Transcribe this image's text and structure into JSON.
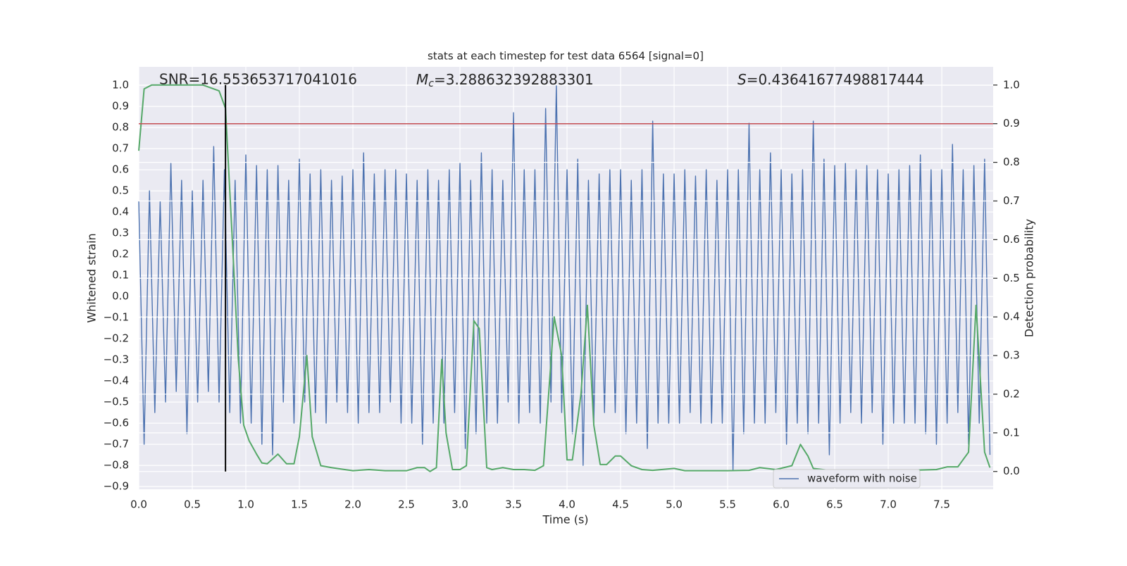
{
  "chart_data": {
    "type": "line",
    "title": "stats at each timestep for test data 6564 [signal=0]",
    "xlabel": "Time (s)",
    "ylabel": "Whitened strain",
    "y2label": "Detection probability",
    "annotations": {
      "snr": "SNR=16.553653717041016",
      "mc": {
        "symbol": "M",
        "subscript": "c",
        "value": "=3.288632392883301"
      },
      "s": {
        "symbol": "S",
        "value": "=0.43641677498817444"
      }
    },
    "xlim": [
      0,
      7.98
    ],
    "ylim": [
      -0.913,
      1.087
    ],
    "y2lim": [
      -0.046,
      1.047
    ],
    "grid": true,
    "legend": "lower right",
    "xticks": [
      {
        "value": 0,
        "label": "0.0"
      },
      {
        "value": 0.5,
        "label": "0.5"
      },
      {
        "value": 1,
        "label": "1.0"
      },
      {
        "value": 1.5,
        "label": "1.5"
      },
      {
        "value": 2,
        "label": "2.0"
      },
      {
        "value": 2.5,
        "label": "2.5"
      },
      {
        "value": 3,
        "label": "3.0"
      },
      {
        "value": 3.5,
        "label": "3.5"
      },
      {
        "value": 4,
        "label": "4.0"
      },
      {
        "value": 4.5,
        "label": "4.5"
      },
      {
        "value": 5,
        "label": "5.0"
      },
      {
        "value": 5.5,
        "label": "5.5"
      },
      {
        "value": 6,
        "label": "6.0"
      },
      {
        "value": 6.5,
        "label": "6.5"
      },
      {
        "value": 7,
        "label": "7.0"
      },
      {
        "value": 7.5,
        "label": "7.5"
      }
    ],
    "yticks": [
      {
        "value": -0.9,
        "label": "−0.9"
      },
      {
        "value": -0.8,
        "label": "−0.8"
      },
      {
        "value": -0.7,
        "label": "−0.7"
      },
      {
        "value": -0.6,
        "label": "−0.6"
      },
      {
        "value": -0.5,
        "label": "−0.5"
      },
      {
        "value": -0.4,
        "label": "−0.4"
      },
      {
        "value": -0.3,
        "label": "−0.3"
      },
      {
        "value": -0.2,
        "label": "−0.2"
      },
      {
        "value": -0.1,
        "label": "−0.1"
      },
      {
        "value": 0,
        "label": "0.0"
      },
      {
        "value": 0.1,
        "label": "0.1"
      },
      {
        "value": 0.2,
        "label": "0.2"
      },
      {
        "value": 0.3,
        "label": "0.3"
      },
      {
        "value": 0.4,
        "label": "0.4"
      },
      {
        "value": 0.5,
        "label": "0.5"
      },
      {
        "value": 0.6,
        "label": "0.6"
      },
      {
        "value": 0.7,
        "label": "0.7"
      },
      {
        "value": 0.8,
        "label": "0.8"
      },
      {
        "value": 0.9,
        "label": "0.9"
      },
      {
        "value": 1,
        "label": "1.0"
      }
    ],
    "y2ticks": [
      {
        "value": 0,
        "label": "0.0"
      },
      {
        "value": 0.1,
        "label": "0.1"
      },
      {
        "value": 0.2,
        "label": "0.2"
      },
      {
        "value": 0.3,
        "label": "0.3"
      },
      {
        "value": 0.4,
        "label": "0.4"
      },
      {
        "value": 0.5,
        "label": "0.5"
      },
      {
        "value": 0.6,
        "label": "0.6"
      },
      {
        "value": 0.7,
        "label": "0.7"
      },
      {
        "value": 0.8,
        "label": "0.8"
      },
      {
        "value": 0.9,
        "label": "0.9"
      },
      {
        "value": 1,
        "label": "1.0"
      }
    ],
    "threshold": {
      "value": 0.9,
      "axis": "y2",
      "color": "#c44e52"
    },
    "marker_x": {
      "value": 0.81,
      "color": "#000000"
    },
    "series": [
      {
        "name": "waveform with noise",
        "color": "#4c72b0",
        "x": [
          0,
          0.05,
          0.1,
          0.15,
          0.2,
          0.25,
          0.3,
          0.35,
          0.4,
          0.45,
          0.5,
          0.55,
          0.6,
          0.65,
          0.7,
          0.75,
          0.8,
          0.85,
          0.9,
          0.95,
          1,
          1.05,
          1.1,
          1.15,
          1.2,
          1.25,
          1.3,
          1.35,
          1.4,
          1.45,
          1.5,
          1.55,
          1.6,
          1.65,
          1.7,
          1.75,
          1.8,
          1.85,
          1.9,
          1.95,
          2,
          2.05,
          2.1,
          2.15,
          2.2,
          2.25,
          2.3,
          2.35,
          2.4,
          2.45,
          2.5,
          2.55,
          2.6,
          2.65,
          2.7,
          2.75,
          2.8,
          2.85,
          2.9,
          2.95,
          3,
          3.05,
          3.1,
          3.15,
          3.2,
          3.25,
          3.3,
          3.35,
          3.4,
          3.45,
          3.5,
          3.55,
          3.6,
          3.65,
          3.7,
          3.75,
          3.8,
          3.85,
          3.9,
          3.95,
          4,
          4.05,
          4.1,
          4.15,
          4.2,
          4.25,
          4.3,
          4.35,
          4.4,
          4.45,
          4.5,
          4.55,
          4.6,
          4.65,
          4.7,
          4.75,
          4.8,
          4.85,
          4.9,
          4.95,
          5,
          5.05,
          5.1,
          5.15,
          5.2,
          5.25,
          5.3,
          5.35,
          5.4,
          5.45,
          5.5,
          5.55,
          5.6,
          5.65,
          5.7,
          5.75,
          5.8,
          5.85,
          5.9,
          5.95,
          6,
          6.05,
          6.1,
          6.15,
          6.2,
          6.25,
          6.3,
          6.35,
          6.4,
          6.45,
          6.5,
          6.55,
          6.6,
          6.65,
          6.7,
          6.75,
          6.8,
          6.85,
          6.9,
          6.95,
          7,
          7.05,
          7.1,
          7.15,
          7.2,
          7.25,
          7.3,
          7.35,
          7.4,
          7.45,
          7.5,
          7.55,
          7.6,
          7.65,
          7.7,
          7.75,
          7.8,
          7.85,
          7.9,
          7.95
        ],
        "values": [
          0.45,
          -0.7,
          0.5,
          -0.55,
          0.45,
          -0.5,
          0.63,
          -0.45,
          0.55,
          -0.65,
          0.5,
          -0.5,
          0.55,
          -0.45,
          0.71,
          -0.5,
          0.6,
          -0.55,
          0.55,
          -0.6,
          0.67,
          -0.6,
          0.62,
          -0.7,
          0.6,
          -0.75,
          0.62,
          -0.5,
          0.55,
          -0.6,
          0.65,
          -0.5,
          0.58,
          -0.55,
          0.6,
          -0.6,
          0.55,
          -0.5,
          0.57,
          -0.55,
          0.6,
          -0.6,
          0.68,
          -0.55,
          0.58,
          -0.55,
          0.6,
          -0.5,
          0.6,
          -0.6,
          0.58,
          -0.6,
          0.55,
          -0.7,
          0.6,
          -0.6,
          0.55,
          -0.6,
          0.6,
          -0.55,
          0.63,
          -0.72,
          0.55,
          -0.65,
          0.68,
          -0.6,
          0.6,
          -0.6,
          0.55,
          -0.5,
          0.87,
          -0.6,
          0.6,
          -0.55,
          0.6,
          -0.6,
          0.89,
          -0.5,
          1.0,
          -0.55,
          0.6,
          -0.65,
          0.65,
          -0.8,
          0.55,
          -0.6,
          0.58,
          -0.55,
          0.6,
          -0.55,
          0.6,
          -0.65,
          0.55,
          -0.6,
          0.6,
          -0.72,
          0.83,
          -0.6,
          0.58,
          -0.6,
          0.58,
          -0.6,
          0.6,
          -0.55,
          0.57,
          -0.6,
          0.6,
          -0.6,
          0.55,
          -0.6,
          0.6,
          -0.82,
          0.6,
          -0.65,
          0.82,
          -0.6,
          0.6,
          -0.6,
          0.68,
          -0.55,
          0.6,
          -0.7,
          0.58,
          -0.6,
          0.6,
          -0.65,
          0.83,
          -0.6,
          0.65,
          -0.75,
          0.62,
          -0.6,
          0.63,
          -0.55,
          0.6,
          -0.6,
          0.62,
          -0.55,
          0.6,
          -0.7,
          0.58,
          -0.6,
          0.6,
          -0.6,
          0.62,
          -0.6,
          0.67,
          -0.65,
          0.6,
          -0.7,
          0.6,
          -0.6,
          0.72,
          -0.55,
          0.6,
          -0.7,
          0.62,
          -0.6,
          0.65,
          -0.75
        ]
      },
      {
        "color": "#55a868",
        "axis": "y2",
        "x": [
          0,
          0.05,
          0.12,
          0.3,
          0.6,
          0.65,
          0.75,
          0.81,
          0.87,
          0.93,
          0.98,
          1.03,
          1.1,
          1.15,
          1.2,
          1.3,
          1.38,
          1.45,
          1.5,
          1.57,
          1.62,
          1.7,
          1.8,
          1.9,
          2,
          2.15,
          2.3,
          2.5,
          2.6,
          2.67,
          2.72,
          2.78,
          2.83,
          2.87,
          2.93,
          3,
          3.06,
          3.13,
          3.18,
          3.25,
          3.3,
          3.4,
          3.5,
          3.6,
          3.7,
          3.78,
          3.88,
          3.95,
          4,
          4.05,
          4.13,
          4.19,
          4.25,
          4.31,
          4.37,
          4.45,
          4.5,
          4.6,
          4.7,
          4.8,
          5,
          5.1,
          5.5,
          5.7,
          5.8,
          5.95,
          6.1,
          6.18,
          6.25,
          6.3,
          6.45,
          6.7,
          6.9,
          7.2,
          7.45,
          7.55,
          7.65,
          7.75,
          7.82,
          7.9,
          7.95
        ],
        "values": [
          0.83,
          0.99,
          1.0,
          1.0,
          1.0,
          0.995,
          0.985,
          0.94,
          0.62,
          0.29,
          0.12,
          0.08,
          0.045,
          0.022,
          0.02,
          0.045,
          0.02,
          0.02,
          0.09,
          0.3,
          0.09,
          0.015,
          0.01,
          0.006,
          0.002,
          0.005,
          0.002,
          0.002,
          0.01,
          0.01,
          0.0,
          0.01,
          0.29,
          0.1,
          0.005,
          0.005,
          0.015,
          0.39,
          0.37,
          0.01,
          0.005,
          0.01,
          0.005,
          0.005,
          0.003,
          0.015,
          0.4,
          0.3,
          0.03,
          0.03,
          0.2,
          0.43,
          0.12,
          0.018,
          0.018,
          0.04,
          0.04,
          0.015,
          0.005,
          0.003,
          0.008,
          0.002,
          0.002,
          0.003,
          0.01,
          0.005,
          0.015,
          0.07,
          0.04,
          0.008,
          0.003,
          0.003,
          0.003,
          0.003,
          0.005,
          0.012,
          0.012,
          0.05,
          0.43,
          0.05,
          0.01
        ]
      }
    ]
  }
}
